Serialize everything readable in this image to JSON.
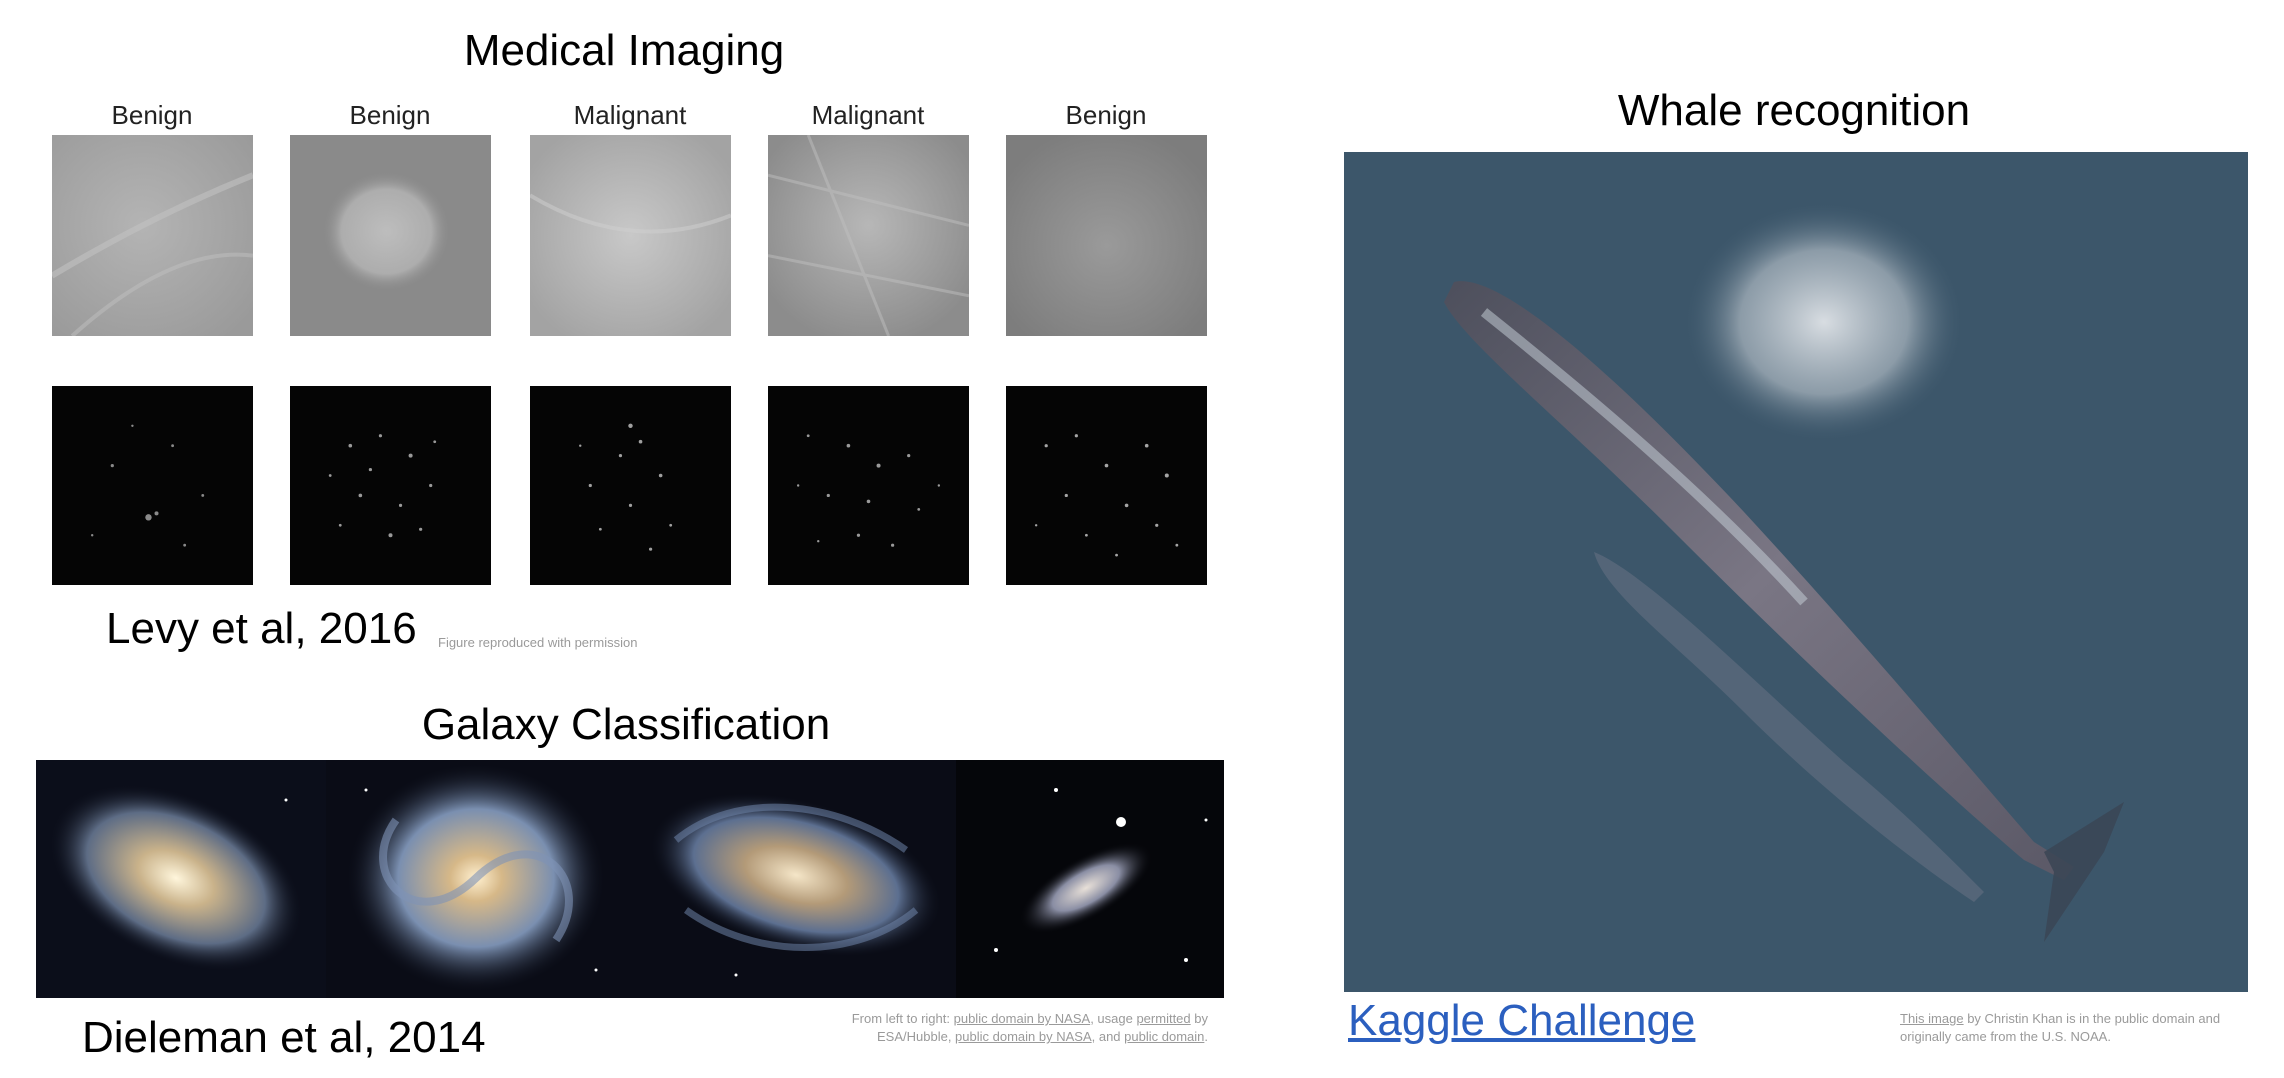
{
  "medical": {
    "title": "Medical Imaging",
    "labels": [
      "Benign",
      "Benign",
      "Malignant",
      "Malignant",
      "Benign"
    ],
    "citation": "Levy et al, 2016",
    "note": "Figure reproduced with permission"
  },
  "galaxy": {
    "title": "Galaxy Classification",
    "citation": "Dieleman et al, 2014",
    "credit": {
      "prefix": "From left to right: ",
      "link1": "public domain by NASA",
      "mid1": ", usage ",
      "link2": "permitted",
      "mid2": " by",
      "line2_prefix": "ESA/Hubble, ",
      "link3": "public domain by NASA",
      "mid3": ", and ",
      "link4": "public domain",
      "end": "."
    }
  },
  "whale": {
    "title": "Whale recognition",
    "link": "Kaggle Challenge",
    "credit": {
      "link": "This image",
      "text1": " by Christin Khan is in the public domain and",
      "text2": "originally came from the U.S. NOAA."
    }
  }
}
